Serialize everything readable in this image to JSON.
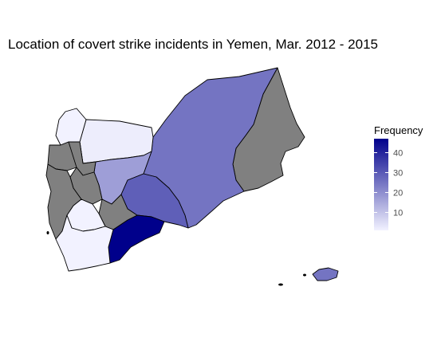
{
  "map": {
    "title": "Location of covert strike incidents in Yemen, Mar. 2012 - 2015",
    "no_data_color": "#808080",
    "regions": [
      {
        "id": "hadramaut",
        "value": 25
      },
      {
        "id": "mahrah",
        "value": null
      },
      {
        "id": "jawf",
        "value": 2
      },
      {
        "id": "saada",
        "value": 0
      },
      {
        "id": "marib",
        "value": 17
      },
      {
        "id": "shabwah",
        "value": 29
      },
      {
        "id": "abyan",
        "value": 47
      },
      {
        "id": "baydah",
        "value": null
      },
      {
        "id": "ibb",
        "value": 1
      },
      {
        "id": "taizz",
        "value": 0
      },
      {
        "id": "hajjah",
        "value": null
      },
      {
        "id": "hudaydah",
        "value": null
      },
      {
        "id": "amran",
        "value": null
      },
      {
        "id": "sanaa",
        "value": null
      },
      {
        "id": "socotra",
        "value": 25
      }
    ]
  },
  "legend": {
    "title": "Frequency",
    "ticks": [
      "10",
      "20",
      "30",
      "40"
    ],
    "min": 1,
    "max": 47,
    "low_color": "#f2f2ff",
    "high_color": "#00008b"
  }
}
